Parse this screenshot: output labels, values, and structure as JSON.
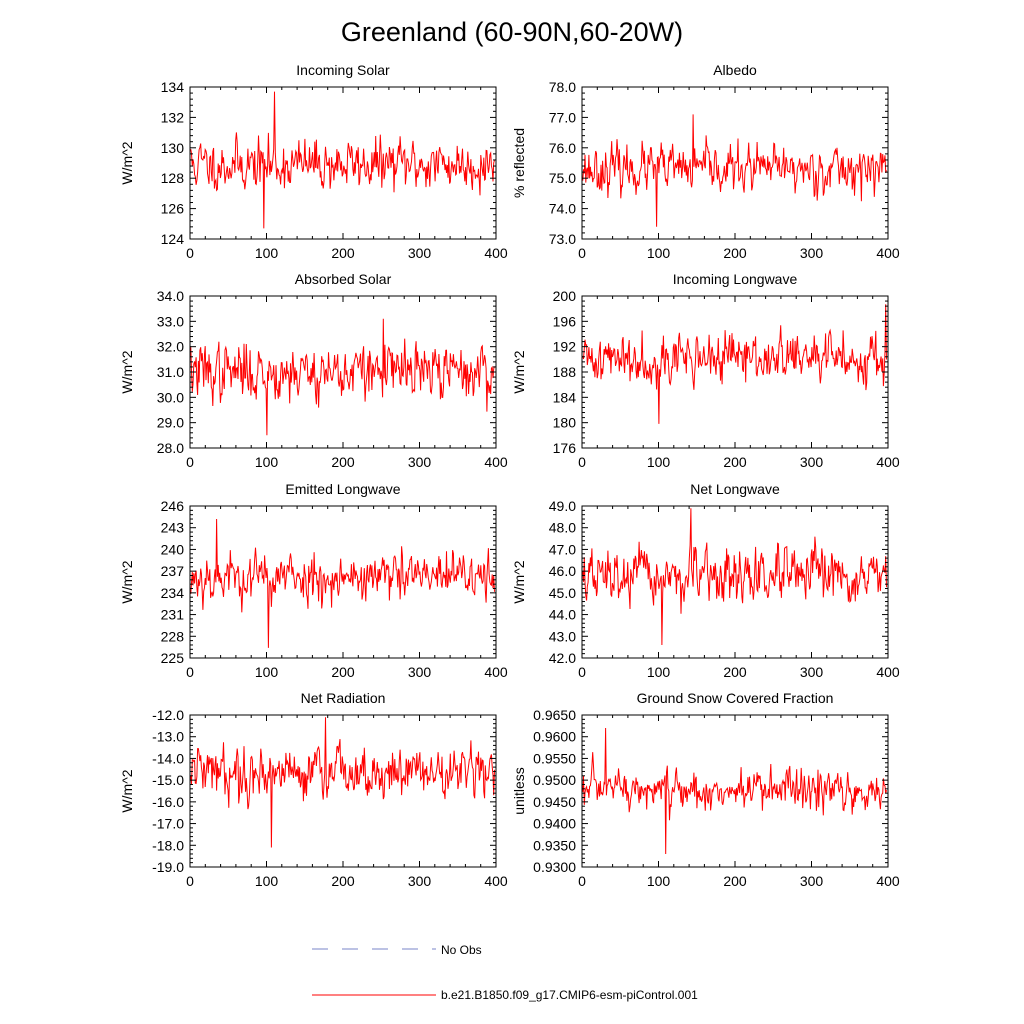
{
  "figure": {
    "title": "Greenland (60-90N,60-20W)"
  },
  "legend": {
    "entries": [
      {
        "label": "No Obs",
        "style": "dashed",
        "color": "#7a86c8"
      },
      {
        "label": "b.e21.B1850.f09_g17.CMIP6-esm-piControl.001",
        "style": "solid",
        "color": "#ff0000"
      }
    ]
  },
  "chart_data": [
    {
      "type": "line",
      "title": "Incoming Solar",
      "ylabel": "W/m^2",
      "xlim": [
        0,
        400
      ],
      "ylim": [
        124,
        134
      ],
      "x_ticks": [
        "0",
        "100",
        "200",
        "300",
        "400"
      ],
      "y_ticks": [
        "124",
        "126",
        "128",
        "130",
        "132",
        "134"
      ],
      "series": [
        {
          "name": "b.e21.B1850.f09_g17.CMIP6-esm-piControl.001",
          "color": "#ff0000",
          "n": 400,
          "mean": 128.9,
          "sd": 1.2,
          "min": 124.7,
          "max": 133.7,
          "seed": 11
        }
      ]
    },
    {
      "type": "line",
      "title": "Albedo",
      "ylabel": "% reflected",
      "xlim": [
        0,
        400
      ],
      "ylim": [
        73.0,
        78.0
      ],
      "x_ticks": [
        "0",
        "100",
        "200",
        "300",
        "400"
      ],
      "y_ticks": [
        "73.0",
        "74.0",
        "75.0",
        "76.0",
        "77.0",
        "78.0"
      ],
      "series": [
        {
          "name": "b.e21.B1850.f09_g17.CMIP6-esm-piControl.001",
          "color": "#ff0000",
          "n": 400,
          "mean": 75.3,
          "sd": 0.55,
          "min": 73.4,
          "max": 77.1,
          "seed": 23
        }
      ]
    },
    {
      "type": "line",
      "title": "Absorbed Solar",
      "ylabel": "W/m^2",
      "xlim": [
        0,
        400
      ],
      "ylim": [
        28.0,
        34.0
      ],
      "x_ticks": [
        "0",
        "100",
        "200",
        "300",
        "400"
      ],
      "y_ticks": [
        "28.0",
        "29.0",
        "30.0",
        "31.0",
        "32.0",
        "33.0",
        "34.0"
      ],
      "series": [
        {
          "name": "b.e21.B1850.f09_g17.CMIP6-esm-piControl.001",
          "color": "#ff0000",
          "n": 400,
          "mean": 31.0,
          "sd": 0.8,
          "min": 28.5,
          "max": 33.1,
          "seed": 37
        }
      ]
    },
    {
      "type": "line",
      "title": "Incoming Longwave",
      "ylabel": "W/m^2",
      "xlim": [
        0,
        400
      ],
      "ylim": [
        176,
        200
      ],
      "x_ticks": [
        "0",
        "100",
        "200",
        "300",
        "400"
      ],
      "y_ticks": [
        "176",
        "180",
        "184",
        "188",
        "192",
        "196",
        "200"
      ],
      "series": [
        {
          "name": "b.e21.B1850.f09_g17.CMIP6-esm-piControl.001",
          "color": "#ff0000",
          "n": 400,
          "mean": 190.2,
          "sd": 2.8,
          "min": 179.8,
          "max": 198.7,
          "seed": 41
        }
      ]
    },
    {
      "type": "line",
      "title": "Emitted Longwave",
      "ylabel": "W/m^2",
      "xlim": [
        0,
        400
      ],
      "ylim": [
        225,
        246
      ],
      "x_ticks": [
        "0",
        "100",
        "200",
        "300",
        "400"
      ],
      "y_ticks": [
        "225",
        "228",
        "231",
        "234",
        "237",
        "240",
        "243",
        "246"
      ],
      "series": [
        {
          "name": "b.e21.B1850.f09_g17.CMIP6-esm-piControl.001",
          "color": "#ff0000",
          "n": 400,
          "mean": 236.2,
          "sd": 2.5,
          "min": 226.4,
          "max": 244.2,
          "seed": 53
        }
      ]
    },
    {
      "type": "line",
      "title": "Net Longwave",
      "ylabel": "W/m^2",
      "xlim": [
        0,
        400
      ],
      "ylim": [
        42.0,
        49.0
      ],
      "x_ticks": [
        "0",
        "100",
        "200",
        "300",
        "400"
      ],
      "y_ticks": [
        "42.0",
        "43.0",
        "44.0",
        "45.0",
        "46.0",
        "47.0",
        "48.0",
        "49.0"
      ],
      "series": [
        {
          "name": "b.e21.B1850.f09_g17.CMIP6-esm-piControl.001",
          "color": "#ff0000",
          "n": 400,
          "mean": 45.7,
          "sd": 0.9,
          "min": 42.6,
          "max": 48.9,
          "seed": 67
        }
      ]
    },
    {
      "type": "line",
      "title": "Net Radiation",
      "ylabel": "W/m^2",
      "xlim": [
        0,
        400
      ],
      "ylim": [
        -19.0,
        -12.0
      ],
      "x_ticks": [
        "0",
        "100",
        "200",
        "300",
        "400"
      ],
      "y_ticks": [
        "-19.0",
        "-18.0",
        "-17.0",
        "-16.0",
        "-15.0",
        "-14.0",
        "-13.0",
        "-12.0"
      ],
      "series": [
        {
          "name": "b.e21.B1850.f09_g17.CMIP6-esm-piControl.001",
          "color": "#ff0000",
          "n": 400,
          "mean": -14.6,
          "sd": 0.85,
          "min": -18.1,
          "max": -12.1,
          "seed": 79
        }
      ]
    },
    {
      "type": "line",
      "title": "Ground Snow Covered Fraction",
      "ylabel": "unitless",
      "xlim": [
        0,
        400
      ],
      "ylim": [
        0.93,
        0.965
      ],
      "x_ticks": [
        "0",
        "100",
        "200",
        "300",
        "400"
      ],
      "y_ticks": [
        "0.9300",
        "0.9350",
        "0.9400",
        "0.9450",
        "0.9500",
        "0.9550",
        "0.9600",
        "0.9650"
      ],
      "series": [
        {
          "name": "b.e21.B1850.f09_g17.CMIP6-esm-piControl.001",
          "color": "#ff0000",
          "n": 400,
          "mean": 0.9475,
          "sd": 0.0035,
          "min": 0.933,
          "max": 0.962,
          "seed": 97
        }
      ]
    }
  ]
}
